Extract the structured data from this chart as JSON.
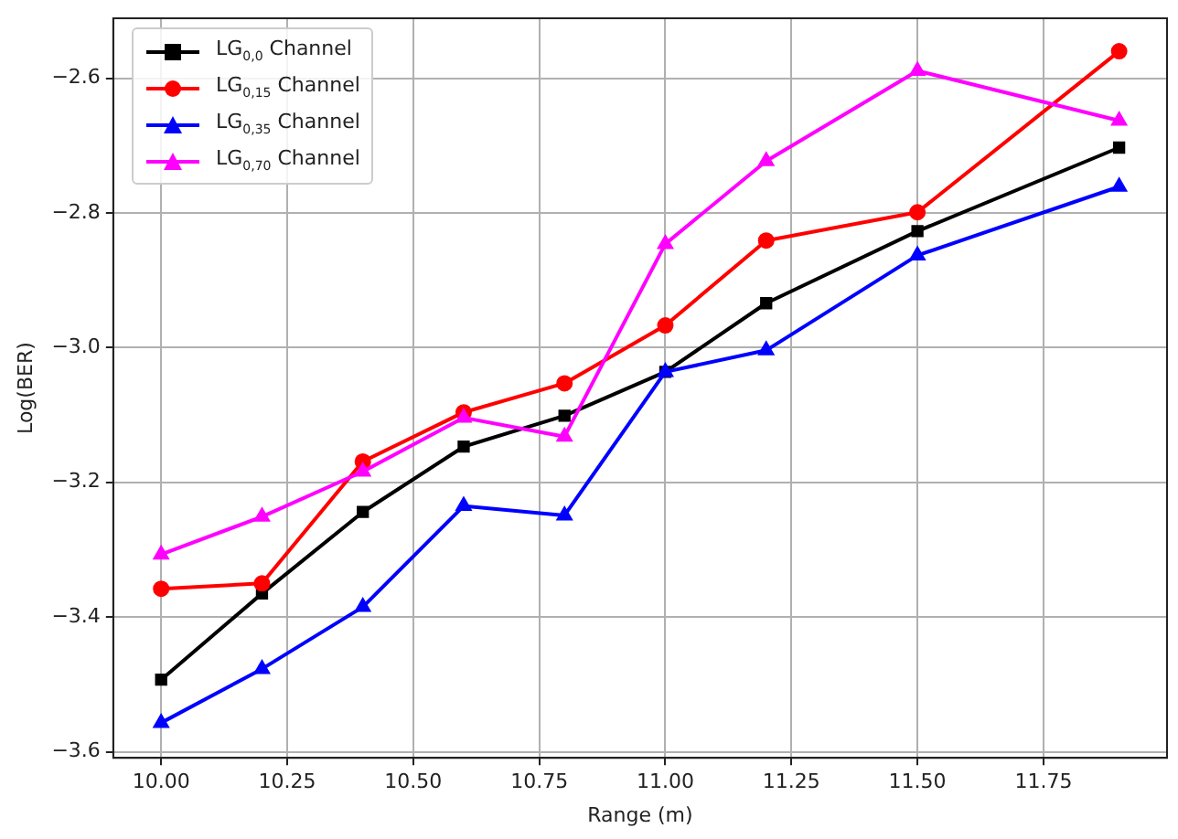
{
  "chart_data": {
    "type": "line",
    "xlabel": "Range (m)",
    "ylabel": "Log(BER)",
    "x": [
      10.0,
      10.2,
      10.4,
      10.6,
      10.8,
      11.0,
      11.2,
      11.5,
      11.9
    ],
    "xlim": [
      9.905,
      11.995
    ],
    "xticks": [
      {
        "value": 10,
        "label": "10.00"
      },
      {
        "value": 10.25,
        "label": "10.25"
      },
      {
        "value": 10.5,
        "label": "10.50"
      },
      {
        "value": 10.75,
        "label": "10.75"
      },
      {
        "value": 11,
        "label": "11.00"
      },
      {
        "value": 11.25,
        "label": "11.25"
      },
      {
        "value": 11.5,
        "label": "11.50"
      },
      {
        "value": 11.75,
        "label": "11.75"
      }
    ],
    "ylim": [
      -3.609,
      -2.511
    ],
    "yticks": [
      {
        "value": -3.6,
        "label": "−3.6"
      },
      {
        "value": -3.4,
        "label": "−3.4"
      },
      {
        "value": -3.2,
        "label": "−3.2"
      },
      {
        "value": -3.0,
        "label": "−3.0"
      },
      {
        "value": -2.8,
        "label": "−2.8"
      },
      {
        "value": -2.6,
        "label": "−2.6"
      }
    ],
    "grid": true,
    "legend": "top left",
    "line_style": "solid",
    "series": [
      {
        "name": "LG$_{0,0}$ Channel",
        "color": "#000000",
        "marker": "square",
        "values": [
          -3.493,
          -3.365,
          -3.244,
          -3.147,
          -3.101,
          -3.036,
          -2.934,
          -2.827,
          -2.703
        ]
      },
      {
        "name": "LG$_{0,15}$ Channel",
        "color": "#ff0000",
        "marker": "circle",
        "values": [
          -3.358,
          -3.35,
          -3.169,
          -3.096,
          -3.053,
          -2.967,
          -2.841,
          -2.799,
          -2.56
        ]
      },
      {
        "name": "LG$_{0,35}$ Channel",
        "color": "#0000ff",
        "marker": "triangle",
        "values": [
          -3.557,
          -3.477,
          -3.385,
          -3.235,
          -3.249,
          -3.036,
          -3.004,
          -2.863,
          -2.761
        ]
      },
      {
        "name": "LG$_{0,70}$ Channel",
        "color": "#ff00ff",
        "marker": "triangle",
        "values": [
          -3.307,
          -3.251,
          -3.184,
          -3.104,
          -3.132,
          -2.846,
          -2.723,
          -2.589,
          -2.663
        ]
      }
    ]
  }
}
